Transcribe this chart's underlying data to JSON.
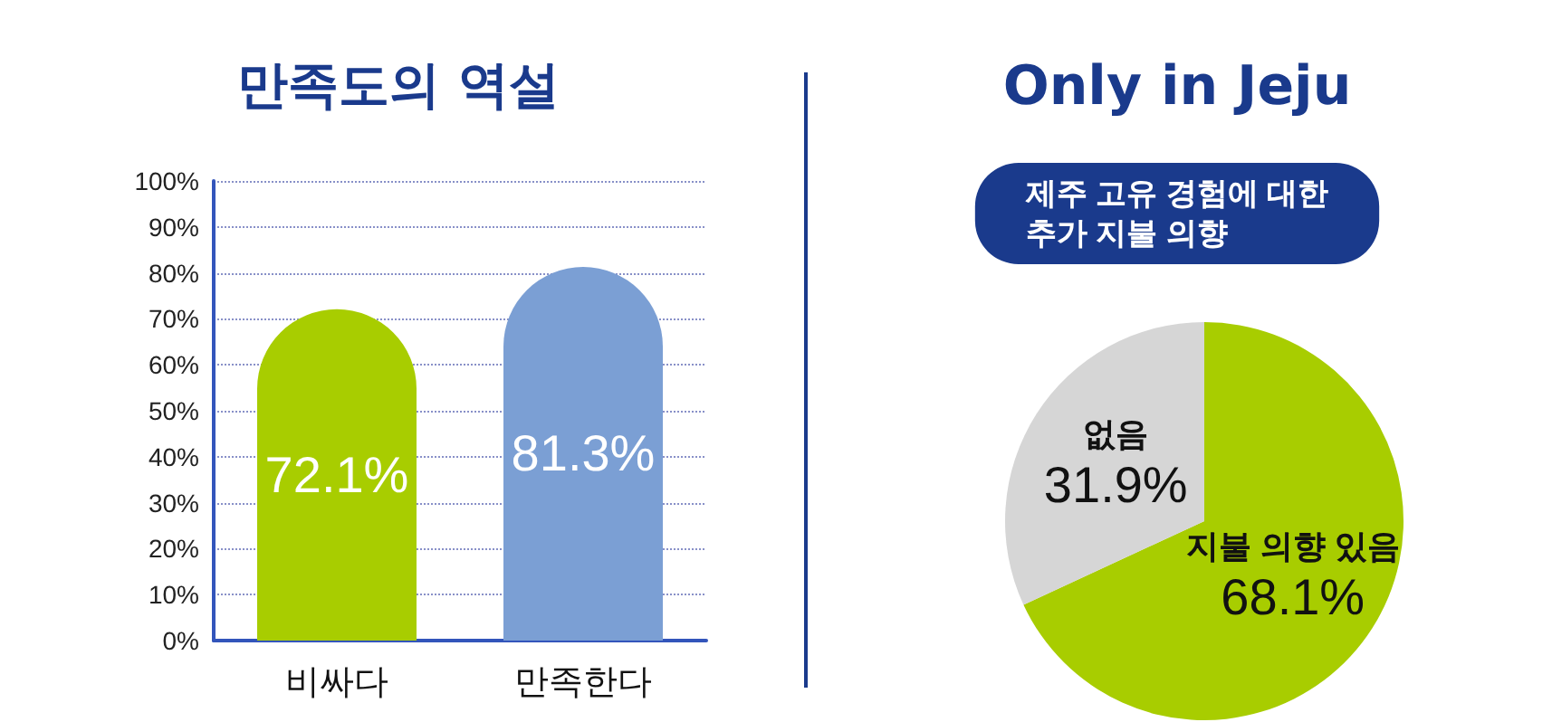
{
  "chart_data": [
    {
      "type": "bar",
      "title": "만족도의 역설",
      "categories": [
        "비싸다",
        "만족한다"
      ],
      "values": [
        72.1,
        81.3
      ],
      "colors": [
        "#a8cd00",
        "#7b9fd4"
      ],
      "value_labels": [
        "72.1%",
        "81.3%"
      ],
      "ylim": [
        0,
        100
      ],
      "yticks": [
        {
          "value": 0,
          "label": "0%"
        },
        {
          "value": 10,
          "label": "10%"
        },
        {
          "value": 20,
          "label": "20%"
        },
        {
          "value": 30,
          "label": "30%"
        },
        {
          "value": 40,
          "label": "40%"
        },
        {
          "value": 50,
          "label": "50%"
        },
        {
          "value": 60,
          "label": "60%"
        },
        {
          "value": 70,
          "label": "70%"
        },
        {
          "value": 80,
          "label": "80%"
        },
        {
          "value": 90,
          "label": "90%"
        },
        {
          "value": 100,
          "label": "100%"
        }
      ],
      "grid": "y",
      "legend": false
    },
    {
      "type": "pie",
      "title": "Only in Jeju",
      "subtitle": "제주 고유 경험에 대한\n추가 지불 의향",
      "categories": [
        "지불 의향 있음",
        "없음"
      ],
      "values": [
        68.1,
        31.9
      ],
      "colors": [
        "#a8cd00",
        "#d6d6d6"
      ],
      "value_labels": [
        "68.1%",
        "31.9%"
      ],
      "legend": false
    }
  ]
}
